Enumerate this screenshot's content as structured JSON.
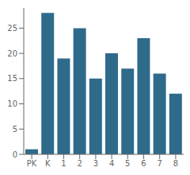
{
  "chart_data": {
    "type": "bar",
    "categories": [
      "PK",
      "K",
      "1",
      "2",
      "3",
      "4",
      "5",
      "6",
      "7",
      "8"
    ],
    "values": [
      1,
      28,
      19,
      25,
      15,
      20,
      17,
      23,
      16,
      12
    ],
    "color": "#2e6b8a",
    "ylim": [
      0,
      29
    ],
    "yticks": [
      0,
      5,
      10,
      15,
      20,
      25
    ],
    "grid": false
  }
}
